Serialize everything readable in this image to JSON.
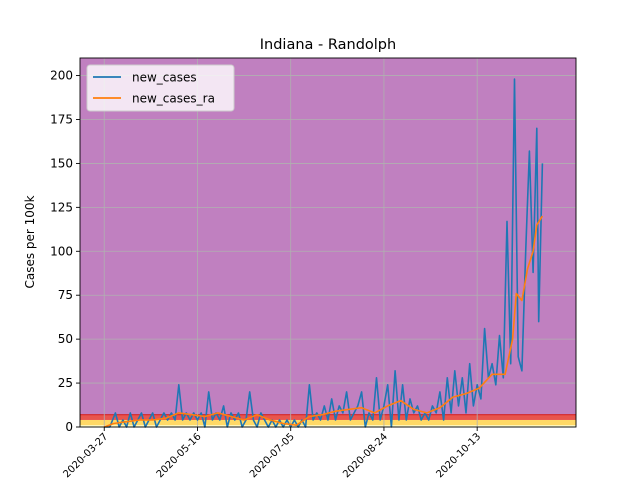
{
  "chart_data": {
    "type": "line",
    "title": "Indiana - Randolph",
    "xlabel": "",
    "ylabel": "Cases per 100k",
    "grid": true,
    "legend_placement": "top-left",
    "xlim": [
      "2020-03-14",
      "2020-12-05"
    ],
    "ylim": [
      0,
      210
    ],
    "x_ticks": [
      "2020-03-27",
      "2020-05-16",
      "2020-07-05",
      "2020-08-24",
      "2020-10-13"
    ],
    "x_tick_labels": [
      "2020-03-27",
      "2020-05-16",
      "2020-07-05",
      "2020-08-24",
      "2020-10-13"
    ],
    "y_ticks": [
      0,
      25,
      50,
      75,
      100,
      125,
      150,
      175,
      200
    ],
    "risk_bands": [
      {
        "from": 0,
        "to": 1,
        "color": "#ffffcc"
      },
      {
        "from": 1,
        "to": 4,
        "color": "#ffd966"
      },
      {
        "from": 4,
        "to": 7,
        "color": "#e8554e"
      },
      {
        "from": 7,
        "to": 210,
        "color": "#c080c0"
      }
    ],
    "series": [
      {
        "name": "new_cases",
        "color": "#1f77b4",
        "points": [
          [
            "2020-03-27",
            0
          ],
          [
            "2020-03-30",
            0
          ],
          [
            "2020-04-02",
            8
          ],
          [
            "2020-04-04",
            0
          ],
          [
            "2020-04-06",
            4
          ],
          [
            "2020-04-08",
            0
          ],
          [
            "2020-04-10",
            8
          ],
          [
            "2020-04-12",
            0
          ],
          [
            "2020-04-14",
            4
          ],
          [
            "2020-04-16",
            8
          ],
          [
            "2020-04-18",
            0
          ],
          [
            "2020-04-20",
            4
          ],
          [
            "2020-04-22",
            8
          ],
          [
            "2020-04-24",
            0
          ],
          [
            "2020-04-26",
            4
          ],
          [
            "2020-04-28",
            8
          ],
          [
            "2020-04-30",
            4
          ],
          [
            "2020-05-02",
            8
          ],
          [
            "2020-05-04",
            4
          ],
          [
            "2020-05-06",
            24
          ],
          [
            "2020-05-08",
            4
          ],
          [
            "2020-05-10",
            8
          ],
          [
            "2020-05-12",
            4
          ],
          [
            "2020-05-14",
            8
          ],
          [
            "2020-05-16",
            4
          ],
          [
            "2020-05-18",
            8
          ],
          [
            "2020-05-20",
            0
          ],
          [
            "2020-05-22",
            20
          ],
          [
            "2020-05-24",
            4
          ],
          [
            "2020-05-26",
            8
          ],
          [
            "2020-05-28",
            4
          ],
          [
            "2020-05-30",
            12
          ],
          [
            "2020-06-01",
            0
          ],
          [
            "2020-06-03",
            8
          ],
          [
            "2020-06-05",
            4
          ],
          [
            "2020-06-07",
            8
          ],
          [
            "2020-06-09",
            0
          ],
          [
            "2020-06-11",
            4
          ],
          [
            "2020-06-13",
            20
          ],
          [
            "2020-06-15",
            4
          ],
          [
            "2020-06-17",
            0
          ],
          [
            "2020-06-19",
            8
          ],
          [
            "2020-06-21",
            4
          ],
          [
            "2020-06-23",
            0
          ],
          [
            "2020-06-25",
            4
          ],
          [
            "2020-06-27",
            0
          ],
          [
            "2020-06-29",
            4
          ],
          [
            "2020-07-01",
            0
          ],
          [
            "2020-07-03",
            4
          ],
          [
            "2020-07-05",
            0
          ],
          [
            "2020-07-07",
            4
          ],
          [
            "2020-07-09",
            0
          ],
          [
            "2020-07-11",
            4
          ],
          [
            "2020-07-13",
            0
          ],
          [
            "2020-07-15",
            24
          ],
          [
            "2020-07-17",
            4
          ],
          [
            "2020-07-19",
            8
          ],
          [
            "2020-07-21",
            4
          ],
          [
            "2020-07-23",
            12
          ],
          [
            "2020-07-25",
            4
          ],
          [
            "2020-07-27",
            16
          ],
          [
            "2020-07-29",
            4
          ],
          [
            "2020-07-31",
            12
          ],
          [
            "2020-08-02",
            8
          ],
          [
            "2020-08-04",
            20
          ],
          [
            "2020-08-06",
            4
          ],
          [
            "2020-08-08",
            8
          ],
          [
            "2020-08-10",
            12
          ],
          [
            "2020-08-12",
            20
          ],
          [
            "2020-08-14",
            0
          ],
          [
            "2020-08-16",
            8
          ],
          [
            "2020-08-18",
            4
          ],
          [
            "2020-08-20",
            28
          ],
          [
            "2020-08-22",
            4
          ],
          [
            "2020-08-24",
            12
          ],
          [
            "2020-08-26",
            24
          ],
          [
            "2020-08-28",
            0
          ],
          [
            "2020-08-30",
            32
          ],
          [
            "2020-09-01",
            4
          ],
          [
            "2020-09-03",
            24
          ],
          [
            "2020-09-05",
            4
          ],
          [
            "2020-09-07",
            16
          ],
          [
            "2020-09-09",
            8
          ],
          [
            "2020-09-11",
            12
          ],
          [
            "2020-09-13",
            4
          ],
          [
            "2020-09-15",
            8
          ],
          [
            "2020-09-17",
            4
          ],
          [
            "2020-09-19",
            12
          ],
          [
            "2020-09-21",
            8
          ],
          [
            "2020-09-23",
            20
          ],
          [
            "2020-09-25",
            4
          ],
          [
            "2020-09-27",
            28
          ],
          [
            "2020-09-29",
            8
          ],
          [
            "2020-10-01",
            32
          ],
          [
            "2020-10-03",
            12
          ],
          [
            "2020-10-05",
            28
          ],
          [
            "2020-10-07",
            8
          ],
          [
            "2020-10-09",
            36
          ],
          [
            "2020-10-11",
            12
          ],
          [
            "2020-10-13",
            24
          ],
          [
            "2020-10-15",
            16
          ],
          [
            "2020-10-17",
            56
          ],
          [
            "2020-10-19",
            28
          ],
          [
            "2020-10-21",
            36
          ],
          [
            "2020-10-23",
            24
          ],
          [
            "2020-10-25",
            52
          ],
          [
            "2020-10-27",
            28
          ],
          [
            "2020-10-29",
            117
          ],
          [
            "2020-10-31",
            36
          ],
          [
            "2020-11-02",
            198
          ],
          [
            "2020-11-04",
            40
          ],
          [
            "2020-11-06",
            32
          ],
          [
            "2020-11-08",
            100
          ],
          [
            "2020-11-10",
            157
          ],
          [
            "2020-11-12",
            88
          ],
          [
            "2020-11-14",
            170
          ],
          [
            "2020-11-15",
            60
          ],
          [
            "2020-11-17",
            150
          ]
        ]
      },
      {
        "name": "new_cases_ra",
        "color": "#ff7f0e",
        "points": [
          [
            "2020-03-27",
            0
          ],
          [
            "2020-04-01",
            2
          ],
          [
            "2020-04-08",
            3
          ],
          [
            "2020-04-15",
            4
          ],
          [
            "2020-04-22",
            4
          ],
          [
            "2020-04-29",
            5
          ],
          [
            "2020-05-06",
            8
          ],
          [
            "2020-05-13",
            7
          ],
          [
            "2020-05-20",
            6
          ],
          [
            "2020-05-27",
            8
          ],
          [
            "2020-06-03",
            6
          ],
          [
            "2020-06-10",
            4
          ],
          [
            "2020-06-17",
            7
          ],
          [
            "2020-06-24",
            4
          ],
          [
            "2020-07-01",
            2
          ],
          [
            "2020-07-08",
            1
          ],
          [
            "2020-07-15",
            6
          ],
          [
            "2020-07-22",
            7
          ],
          [
            "2020-07-29",
            9
          ],
          [
            "2020-08-05",
            10
          ],
          [
            "2020-08-12",
            11
          ],
          [
            "2020-08-19",
            8
          ],
          [
            "2020-08-26",
            12
          ],
          [
            "2020-09-02",
            15
          ],
          [
            "2020-09-09",
            10
          ],
          [
            "2020-09-16",
            8
          ],
          [
            "2020-09-23",
            11
          ],
          [
            "2020-09-30",
            17
          ],
          [
            "2020-10-07",
            19
          ],
          [
            "2020-10-14",
            22
          ],
          [
            "2020-10-21",
            30
          ],
          [
            "2020-10-28",
            30
          ],
          [
            "2020-11-01",
            50
          ],
          [
            "2020-11-03",
            76
          ],
          [
            "2020-11-06",
            72
          ],
          [
            "2020-11-09",
            90
          ],
          [
            "2020-11-12",
            100
          ],
          [
            "2020-11-14",
            115
          ],
          [
            "2020-11-17",
            120
          ]
        ]
      }
    ]
  }
}
